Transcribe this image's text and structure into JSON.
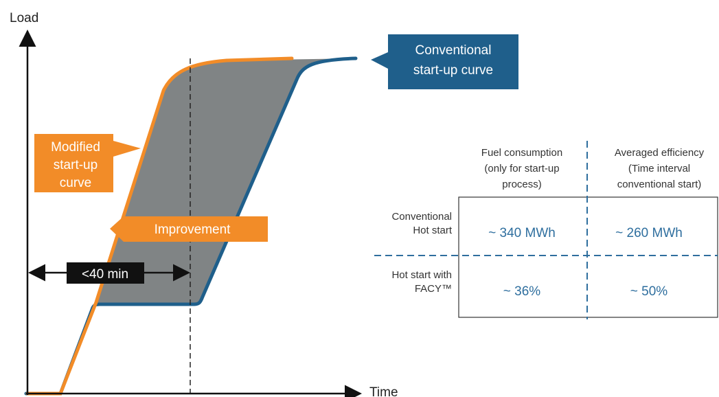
{
  "axes": {
    "y_label": "Load",
    "x_label": "Time"
  },
  "callouts": {
    "conventional": [
      "Conventional",
      "start-up curve"
    ],
    "modified": [
      "Modified",
      "start-up",
      "curve"
    ],
    "improvement": "Improvement",
    "duration": "<40 min"
  },
  "table": {
    "headers": [
      [
        "Fuel consumption",
        "(only for start-up",
        "process)"
      ],
      [
        "Averaged efficiency",
        "(Time interval",
        "conventional start)"
      ]
    ],
    "rows": [
      {
        "label": [
          "Conventional",
          "Hot start"
        ],
        "cells": [
          "~ 340 MWh",
          "~ 260 MWh"
        ]
      },
      {
        "label": [
          "Hot start with",
          "FACY™"
        ],
        "cells": [
          "~ 36%",
          "~ 50%"
        ]
      }
    ]
  }
}
